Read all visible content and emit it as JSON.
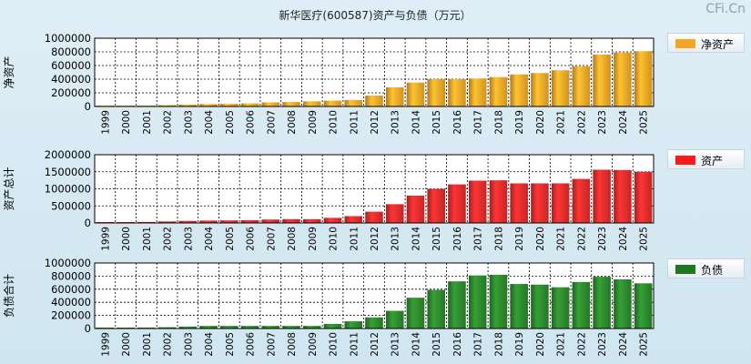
{
  "watermark": "CFi.Cn",
  "chart_data": {
    "type": "bar",
    "title": "新华医疗(600587)资产与负债（万元）",
    "categories": [
      "1999",
      "2000",
      "2001",
      "2002",
      "2003",
      "2004",
      "2005",
      "2006",
      "2007",
      "2008",
      "2009",
      "2010",
      "2011",
      "2012",
      "2013",
      "2014",
      "2015",
      "2016",
      "2017",
      "2018",
      "2019",
      "2020",
      "2021",
      "2022",
      "2023",
      "2024",
      "2025"
    ],
    "panels": [
      {
        "name": "净资产",
        "ylabel": "净资产",
        "ylim": [
          0,
          1000000
        ],
        "ticks": [
          0,
          200000,
          400000,
          600000,
          800000,
          1000000
        ],
        "tick_labels": [
          "0",
          "200000",
          "400000",
          "600000",
          "800000",
          "1000000"
        ],
        "values": [
          8000,
          10000,
          12000,
          20000,
          28000,
          35000,
          38000,
          45000,
          60000,
          65000,
          75000,
          85000,
          95000,
          160000,
          280000,
          350000,
          400000,
          400000,
          410000,
          430000,
          470000,
          490000,
          530000,
          590000,
          760000,
          790000,
          810000
        ],
        "color": "#f4aa2a"
      },
      {
        "name": "资产",
        "ylabel": "资产总计",
        "ylim": [
          0,
          2000000
        ],
        "ticks": [
          0,
          500000,
          1000000,
          1500000,
          2000000
        ],
        "tick_labels": [
          "0",
          "500000",
          "1000000",
          "1500000",
          "2000000"
        ],
        "values": [
          15000,
          20000,
          30000,
          45000,
          60000,
          70000,
          75000,
          80000,
          100000,
          110000,
          110000,
          150000,
          200000,
          330000,
          550000,
          800000,
          1000000,
          1130000,
          1240000,
          1250000,
          1160000,
          1160000,
          1160000,
          1290000,
          1560000,
          1550000,
          1500000
        ],
        "color": "#e52d2d"
      },
      {
        "name": "负债",
        "ylabel": "负债合计",
        "ylim": [
          0,
          1000000
        ],
        "ticks": [
          0,
          200000,
          400000,
          600000,
          800000,
          1000000
        ],
        "tick_labels": [
          "0",
          "200000",
          "400000",
          "600000",
          "800000",
          "1000000"
        ],
        "values": [
          10000,
          10000,
          15000,
          20000,
          30000,
          40000,
          40000,
          40000,
          40000,
          40000,
          40000,
          70000,
          110000,
          170000,
          270000,
          470000,
          590000,
          720000,
          810000,
          820000,
          680000,
          670000,
          630000,
          710000,
          790000,
          750000,
          690000
        ],
        "color": "#2e8b2e"
      }
    ]
  }
}
